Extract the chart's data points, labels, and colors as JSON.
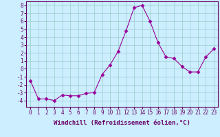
{
  "x": [
    0,
    1,
    2,
    3,
    4,
    5,
    6,
    7,
    8,
    9,
    10,
    11,
    12,
    13,
    14,
    15,
    16,
    17,
    18,
    19,
    20,
    21,
    22,
    23
  ],
  "y": [
    -1.5,
    -3.8,
    -3.8,
    -4.0,
    -3.3,
    -3.4,
    -3.4,
    -3.1,
    -3.0,
    -0.7,
    0.5,
    2.2,
    4.8,
    7.7,
    8.0,
    6.0,
    3.3,
    1.5,
    1.3,
    0.3,
    -0.4,
    -0.4,
    1.5,
    2.5
  ],
  "line_color": "#990099",
  "marker": "D",
  "marker_size": 2.5,
  "bg_color": "#cceeff",
  "grid_color": "#99cccc",
  "xlabel": "Windchill (Refroidissement éolien,°C)",
  "xlabel_color": "#660066",
  "tick_color": "#660066",
  "spine_color": "#660066",
  "ylim": [
    -4.8,
    8.5
  ],
  "xlim": [
    -0.5,
    23.5
  ],
  "yticks": [
    -4,
    -3,
    -2,
    -1,
    0,
    1,
    2,
    3,
    4,
    5,
    6,
    7,
    8
  ],
  "xticks": [
    0,
    1,
    2,
    3,
    4,
    5,
    6,
    7,
    8,
    9,
    10,
    11,
    12,
    13,
    14,
    15,
    16,
    17,
    18,
    19,
    20,
    21,
    22,
    23
  ],
  "xtick_labels": [
    "0",
    "1",
    "2",
    "3",
    "4",
    "5",
    "6",
    "7",
    "8",
    "9",
    "10",
    "11",
    "12",
    "13",
    "14",
    "15",
    "16",
    "17",
    "18",
    "19",
    "20",
    "21",
    "22",
    "23"
  ],
  "tick_fontsize": 5.5,
  "xlabel_fontsize": 6.5
}
